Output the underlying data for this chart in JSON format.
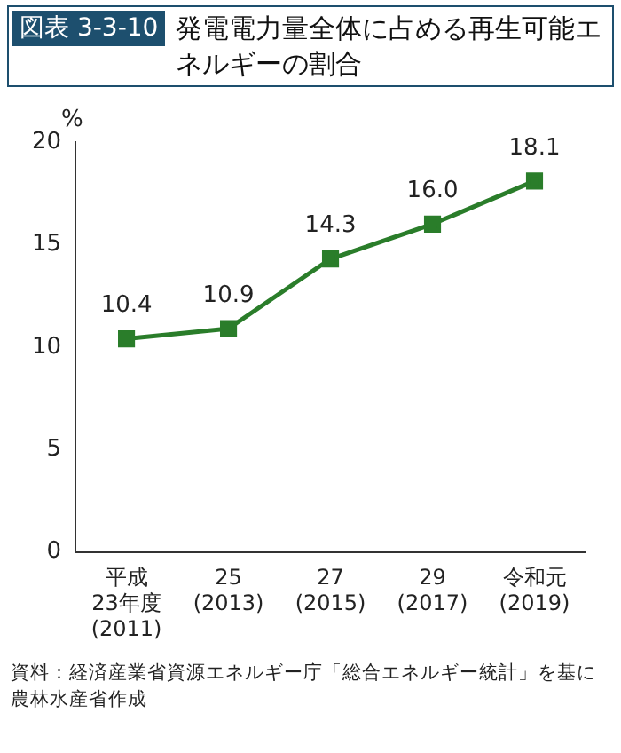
{
  "chart_data": {
    "type": "line",
    "title": "発電電力量全体に占める再生可能エネルギーの割合",
    "ylabel": "%",
    "annotations": [
      "図表 3-3-10",
      "資料：経済産業省資源エネルギー庁「総合エネルギー統計」を基に農林水産省作成"
    ],
    "categories": [
      "平成\n23年度\n(2011)",
      "25\n(2013)",
      "27\n(2015)",
      "29\n(2017)",
      "令和元\n(2019)"
    ],
    "series": [
      {
        "color": "#2a7d2a",
        "values": [
          10.4,
          10.9,
          14.3,
          16.0,
          18.1
        ],
        "value_labels": [
          "10.4",
          "10.9",
          "14.3",
          "16.0",
          "18.1"
        ]
      }
    ],
    "ylim": [
      0,
      20
    ],
    "yticks": [
      0,
      5,
      10,
      15,
      20
    ],
    "grid": false,
    "legend": false,
    "marker": "square",
    "line_style": "solid"
  }
}
